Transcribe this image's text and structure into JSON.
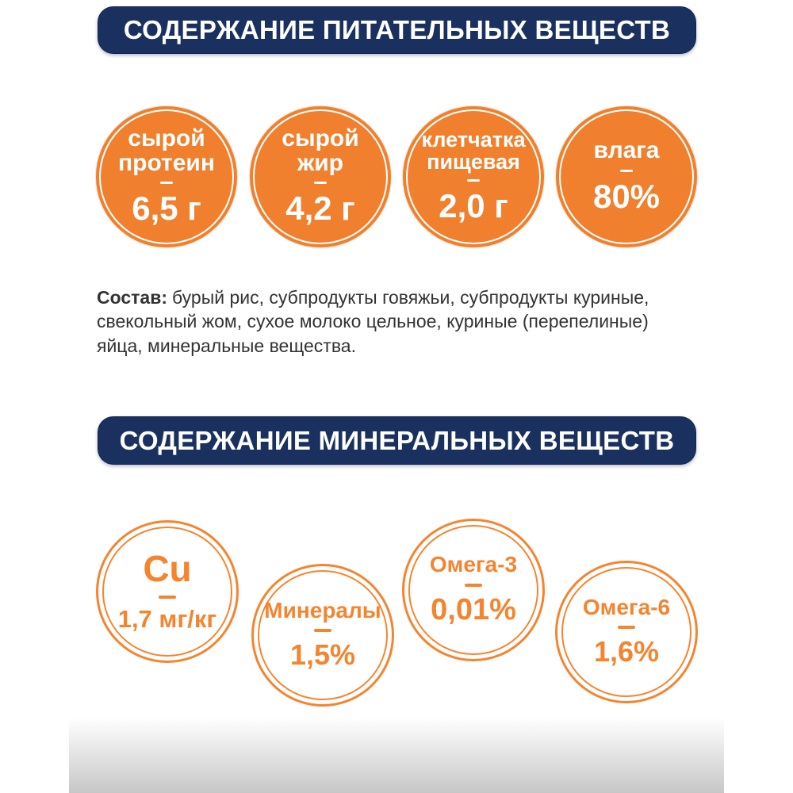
{
  "colors": {
    "banner_navy": "#1a3160",
    "badge_orange_fill": "#f0802d",
    "badge_orange_line": "#f5842f",
    "text_dark": "#333333",
    "bottom_gradient_gray": "#c7c7c7"
  },
  "nutrients": {
    "banner": "СОДЕРЖАНИЕ ПИТАТЕЛЬНЫХ ВЕЩЕСТВ",
    "badges": [
      {
        "label": "сырой протеин",
        "value": "6,5 г"
      },
      {
        "label": "сырой жир",
        "value": "4,2 г"
      },
      {
        "label": "клетчатка пищевая",
        "value": "2,0 г"
      },
      {
        "label": "влага",
        "value": "80%"
      }
    ],
    "composition_label": "Состав:",
    "composition_text": "бурый рис, субпродукты говяжьи, субпродукты куриные, свекольный жом, сухое молоко цельное, куриные (перепелиные) яйца, минеральные вещества."
  },
  "minerals": {
    "banner": "СОДЕРЖАНИЕ МИНЕРАЛЬНЫХ ВЕЩЕСТВ",
    "badges": [
      {
        "label": "Cu",
        "value": "1,7 мг/кг"
      },
      {
        "label": "Минералы",
        "value": "1,5%"
      },
      {
        "label": "Омега-3",
        "value": "0,01%"
      },
      {
        "label": "Омега-6",
        "value": "1,6%"
      }
    ]
  }
}
